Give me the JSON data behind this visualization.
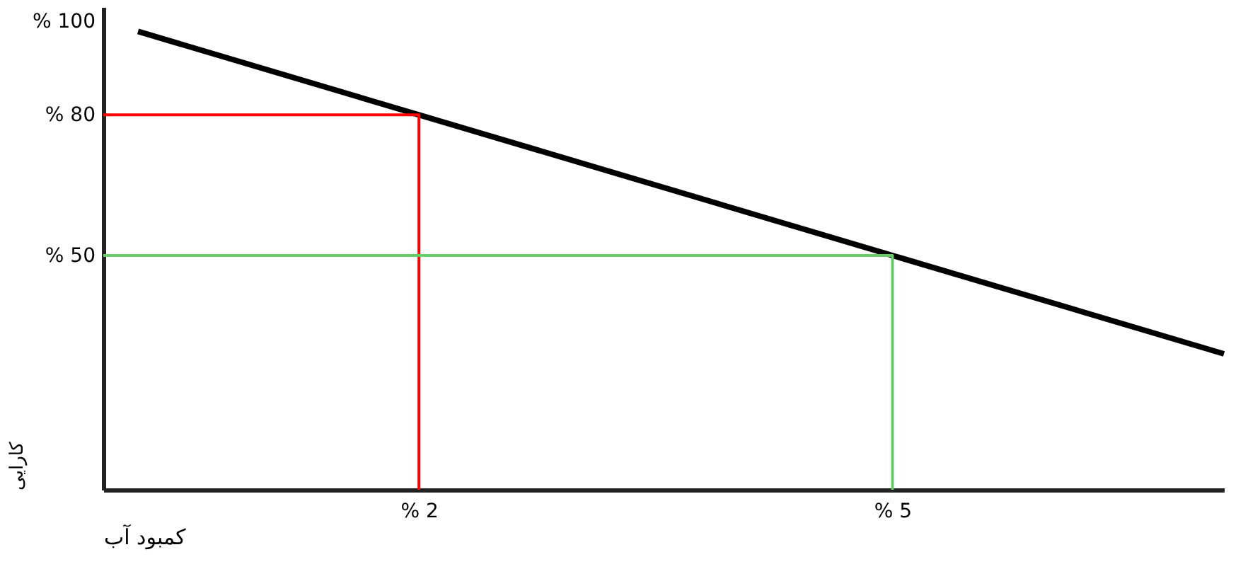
{
  "chart_data": {
    "type": "line",
    "xlabel": "کمبود آب",
    "ylabel": "کارایی",
    "xlim": [
      0,
      7.1
    ],
    "ylim": [
      0,
      103
    ],
    "xticks": [
      {
        "value": 2,
        "label": "% 2"
      },
      {
        "value": 5,
        "label": "% 5"
      }
    ],
    "yticks": [
      {
        "value": 50,
        "label": "% 50"
      },
      {
        "value": 80,
        "label": "% 80"
      },
      {
        "value": 100,
        "label": "% 100"
      }
    ],
    "grid": false,
    "marker": "none",
    "line_style": "solid",
    "series": [
      {
        "color": "#000000",
        "x": [
          0.22,
          7.1
        ],
        "values": [
          97.8,
          29
        ]
      },
      {
        "color": "#ff0000",
        "x": [
          0,
          2,
          2
        ],
        "values": [
          80,
          80,
          0
        ]
      },
      {
        "color": "#66cc66",
        "x": [
          0,
          5,
          5
        ],
        "values": [
          50,
          50,
          0
        ]
      }
    ]
  }
}
